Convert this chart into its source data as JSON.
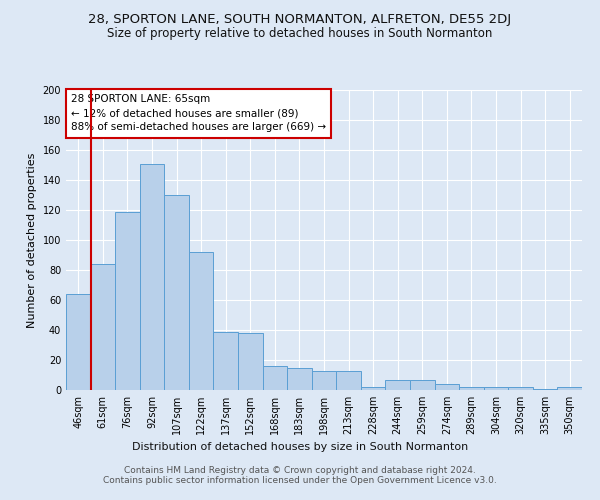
{
  "title": "28, SPORTON LANE, SOUTH NORMANTON, ALFRETON, DE55 2DJ",
  "subtitle": "Size of property relative to detached houses in South Normanton",
  "xlabel": "Distribution of detached houses by size in South Normanton",
  "ylabel": "Number of detached properties",
  "bar_values": [
    64,
    84,
    119,
    151,
    130,
    92,
    39,
    38,
    16,
    15,
    13,
    13,
    2,
    7,
    7,
    4,
    2,
    2,
    2,
    1,
    2
  ],
  "bin_labels": [
    "46sqm",
    "61sqm",
    "76sqm",
    "92sqm",
    "107sqm",
    "122sqm",
    "137sqm",
    "152sqm",
    "168sqm",
    "183sqm",
    "198sqm",
    "213sqm",
    "228sqm",
    "244sqm",
    "259sqm",
    "274sqm",
    "289sqm",
    "304sqm",
    "320sqm",
    "335sqm",
    "350sqm"
  ],
  "bar_color": "#b8d0ea",
  "bar_edge_color": "#5a9fd4",
  "bar_edge_width": 0.7,
  "vline_x": 1,
  "vline_color": "#cc0000",
  "annotation_box_text": "28 SPORTON LANE: 65sqm\n← 12% of detached houses are smaller (89)\n88% of semi-detached houses are larger (669) →",
  "annotation_box_color": "#ffffff",
  "annotation_box_edge_color": "#cc0000",
  "ylim": [
    0,
    200
  ],
  "yticks": [
    0,
    20,
    40,
    60,
    80,
    100,
    120,
    140,
    160,
    180,
    200
  ],
  "bg_color": "#dde8f5",
  "grid_color": "#ffffff",
  "title_fontsize": 9.5,
  "subtitle_fontsize": 8.5,
  "xlabel_fontsize": 8,
  "ylabel_fontsize": 8,
  "tick_fontsize": 7,
  "annotation_fontsize": 7.5,
  "footer_fontsize": 6.5
}
